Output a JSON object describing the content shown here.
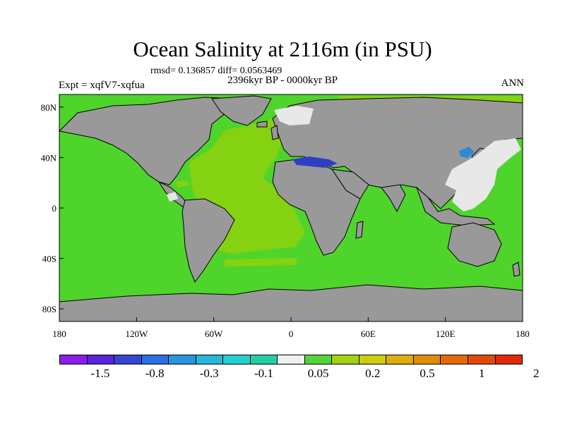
{
  "title": "Ocean Salinity at 2116m (in PSU)",
  "stats": "rmsd= 0.136857 diff= 0.0563469",
  "period": "2396kyr BP - 0000kyr BP",
  "experiment": "Expt = xqfV7-xqfua",
  "season": "ANN",
  "axes": {
    "x_ticks": [
      "180",
      "120W",
      "60W",
      "0",
      "60E",
      "120E",
      "180"
    ],
    "y_ticks": [
      "80N",
      "40N",
      "0",
      "40S",
      "80S"
    ]
  },
  "colors": {
    "land": "#999999",
    "ocean_base": "#4fd42c",
    "atlantic": "#84d211",
    "near_zero": "#e8e8e8",
    "mediterranean": "#2d3fc4",
    "japan_sea": "#2e8ad4",
    "coast": "#000000"
  },
  "colorbar": {
    "colors": [
      "#8a1ee8",
      "#5a23dd",
      "#3545d4",
      "#2a70e0",
      "#2a95de",
      "#28b5da",
      "#25cfcf",
      "#22cfa2",
      "#f0f0f0",
      "#55d53a",
      "#a4d113",
      "#cfcd11",
      "#dcae0e",
      "#e08c0a",
      "#e26a0a",
      "#e24a0a",
      "#e02a0a"
    ],
    "labels": [
      "-1.5",
      "-0.8",
      "-0.3",
      "-0.1",
      "0.05",
      "0.2",
      "0.5",
      "1",
      "2"
    ]
  }
}
